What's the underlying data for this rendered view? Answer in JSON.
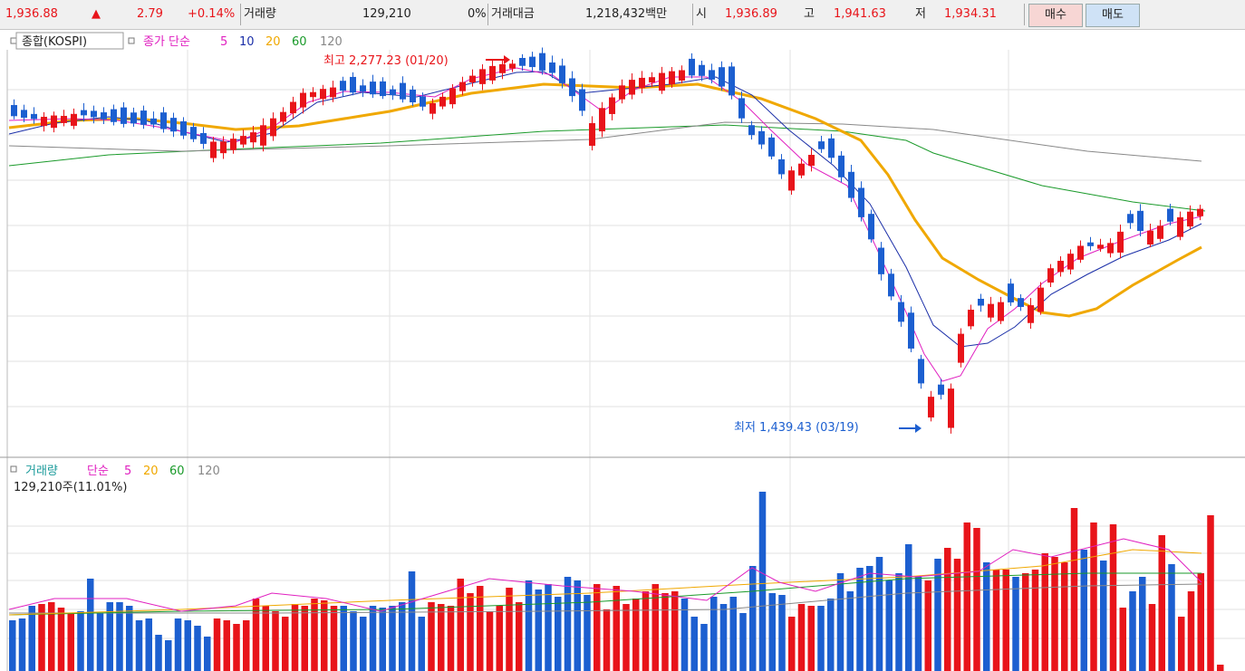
{
  "quote": {
    "price": "1,936.88",
    "change_arrow": "▲",
    "change": "2.79",
    "change_pct": "+0.14%",
    "volume_label": "거래량",
    "volume": "129,210",
    "volume_pct": "0%",
    "turnover_label": "거래대금",
    "turnover": "1,218,432백만",
    "open_label": "시",
    "open": "1,936.89",
    "high_label": "고",
    "high": "1,941.63",
    "low_label": "저",
    "low": "1,934.31"
  },
  "buttons": {
    "buy": "매수",
    "sell": "매도"
  },
  "price_legend": {
    "index": "종합(KOSPI)",
    "ma_label": "종가 단순",
    "periods": [
      "5",
      "10",
      "20",
      "60",
      "120"
    ]
  },
  "volume_legend": {
    "label": "거래량",
    "ma_label": "단순",
    "periods": [
      "5",
      "20",
      "60",
      "120"
    ],
    "current": "129,210주(11.01%)"
  },
  "annotations": {
    "high": "최고 2,277.23 (01/20)",
    "low": "최저 1,439.43 (03/19)"
  },
  "colors": {
    "up": "#e8141a",
    "down": "#1c5fd0",
    "ma5": "#e020c0",
    "ma10": "#1b2fa8",
    "ma20": "#f0a800",
    "ma60": "#1a9a2a",
    "ma120": "#888888"
  },
  "chart_data": {
    "type": "candlestick",
    "high_label": "최고 2,277.23 (01/20)",
    "low_label": "최저 1,439.43 (03/19)",
    "last_volume": "129,210주(11.01%)"
  }
}
